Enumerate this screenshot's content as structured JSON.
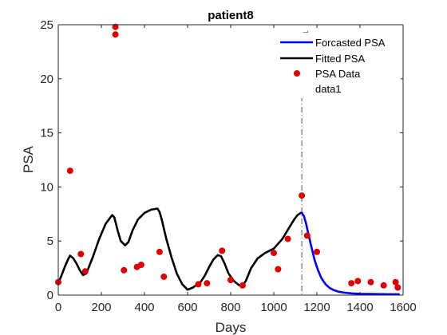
{
  "chart_data": {
    "type": "line",
    "title": "patient8",
    "xlabel": "Days",
    "ylabel": "PSA",
    "xlim": [
      0,
      1600
    ],
    "ylim": [
      0,
      25
    ],
    "xticks": [
      0,
      200,
      400,
      600,
      800,
      1000,
      1200,
      1400,
      1600
    ],
    "yticks": [
      0,
      5,
      10,
      15,
      20,
      25
    ],
    "legend": {
      "position": "top-right",
      "entries": [
        "Forcasted PSA",
        "Fitted PSA",
        "PSA Data",
        "data1"
      ]
    },
    "vertical_line": {
      "x": 1130,
      "label": "1"
    },
    "series": [
      {
        "name": "Fitted PSA",
        "style": "line",
        "color": "#000000",
        "x": [
          0,
          15,
          30,
          45,
          55,
          70,
          85,
          100,
          115,
          130,
          160,
          190,
          220,
          250,
          260,
          275,
          290,
          310,
          325,
          345,
          370,
          400,
          430,
          460,
          470,
          480,
          500,
          525,
          550,
          575,
          600,
          625,
          645,
          660,
          680,
          700,
          720,
          740,
          755,
          770,
          790,
          815,
          840,
          855,
          870,
          895,
          925,
          960,
          1000,
          1040,
          1070,
          1095,
          1110,
          1125,
          1130
        ],
        "y": [
          1.1,
          1.8,
          2.6,
          3.3,
          3.65,
          3.4,
          2.9,
          2.3,
          1.85,
          2.0,
          3.5,
          5.2,
          6.6,
          7.4,
          7.2,
          6.0,
          5.0,
          4.6,
          4.9,
          6.0,
          7.0,
          7.6,
          7.9,
          8.0,
          7.7,
          7.0,
          5.3,
          3.5,
          2.0,
          1.0,
          0.5,
          0.7,
          1.0,
          1.2,
          1.8,
          2.6,
          3.3,
          3.7,
          3.6,
          3.0,
          2.0,
          1.3,
          0.9,
          0.9,
          1.3,
          2.5,
          3.4,
          3.9,
          4.3,
          5.2,
          6.2,
          7.0,
          7.4,
          7.6,
          7.6
        ]
      },
      {
        "name": "Forcasted PSA",
        "style": "line",
        "color": "#0000ff",
        "x": [
          1130,
          1140,
          1150,
          1160,
          1175,
          1190,
          1205,
          1220,
          1240,
          1260,
          1280,
          1300,
          1330,
          1360,
          1400,
          1450,
          1500,
          1550,
          1580
        ],
        "y": [
          7.6,
          7.3,
          6.6,
          5.7,
          4.4,
          3.2,
          2.3,
          1.6,
          1.0,
          0.65,
          0.45,
          0.32,
          0.22,
          0.16,
          0.12,
          0.1,
          0.09,
          0.08,
          0.08
        ]
      },
      {
        "name": "PSA Data",
        "style": "scatter",
        "color": "#e00000",
        "x": [
          0,
          55,
          105,
          125,
          265,
          265,
          305,
          365,
          385,
          470,
          490,
          650,
          690,
          760,
          800,
          855,
          1000,
          1020,
          1065,
          1130,
          1155,
          1200,
          1360,
          1390,
          1450,
          1510,
          1565,
          1575
        ],
        "y": [
          1.2,
          11.5,
          3.8,
          2.2,
          24.8,
          24.1,
          2.3,
          2.6,
          2.8,
          4.0,
          1.7,
          1.0,
          1.1,
          4.1,
          1.4,
          0.9,
          3.9,
          2.4,
          5.2,
          9.2,
          5.5,
          4.0,
          1.1,
          1.3,
          1.2,
          0.9,
          1.2,
          0.7
        ]
      }
    ]
  }
}
